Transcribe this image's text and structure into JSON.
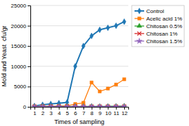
{
  "chart_data": {
    "type": "line",
    "xlabel": "Times of sampling",
    "ylabel": "Mold and Yeast  cfu/gr",
    "x": [
      1,
      2,
      3,
      4,
      5,
      6,
      7,
      8,
      9,
      10,
      11,
      12
    ],
    "series": [
      {
        "name": "Control",
        "marker": "diamond",
        "values": [
          200,
          500,
          700,
          900,
          1100,
          10000,
          15000,
          17500,
          19000,
          19500,
          20000,
          21000
        ]
      },
      {
        "name": "Acelic acid 1%",
        "marker": "square",
        "values": [
          100,
          150,
          150,
          200,
          250,
          700,
          1000,
          6000,
          3800,
          4500,
          5500,
          6800
        ]
      },
      {
        "name": "Chitosan 0.5%",
        "marker": "triangle",
        "values": [
          50,
          80,
          90,
          100,
          100,
          100,
          120,
          150,
          120,
          150,
          170,
          200
        ]
      },
      {
        "name": "Chitosan 1%",
        "marker": "x",
        "values": [
          50,
          60,
          70,
          80,
          80,
          80,
          80,
          80,
          80,
          80,
          80,
          100
        ]
      },
      {
        "name": "Chitosan 1.5%",
        "marker": "star",
        "values": [
          50,
          60,
          60,
          70,
          70,
          70,
          70,
          70,
          70,
          70,
          70,
          80
        ]
      }
    ],
    "xlim": [
      0.5,
      12.5
    ],
    "xticks": [
      1,
      2,
      3,
      4,
      5,
      6,
      7,
      8,
      9,
      10,
      11,
      12
    ],
    "ylim": [
      0,
      25000
    ],
    "yticks": [
      0,
      5000,
      10000,
      15000,
      20000,
      25000
    ],
    "grid": true,
    "legend": "right"
  }
}
